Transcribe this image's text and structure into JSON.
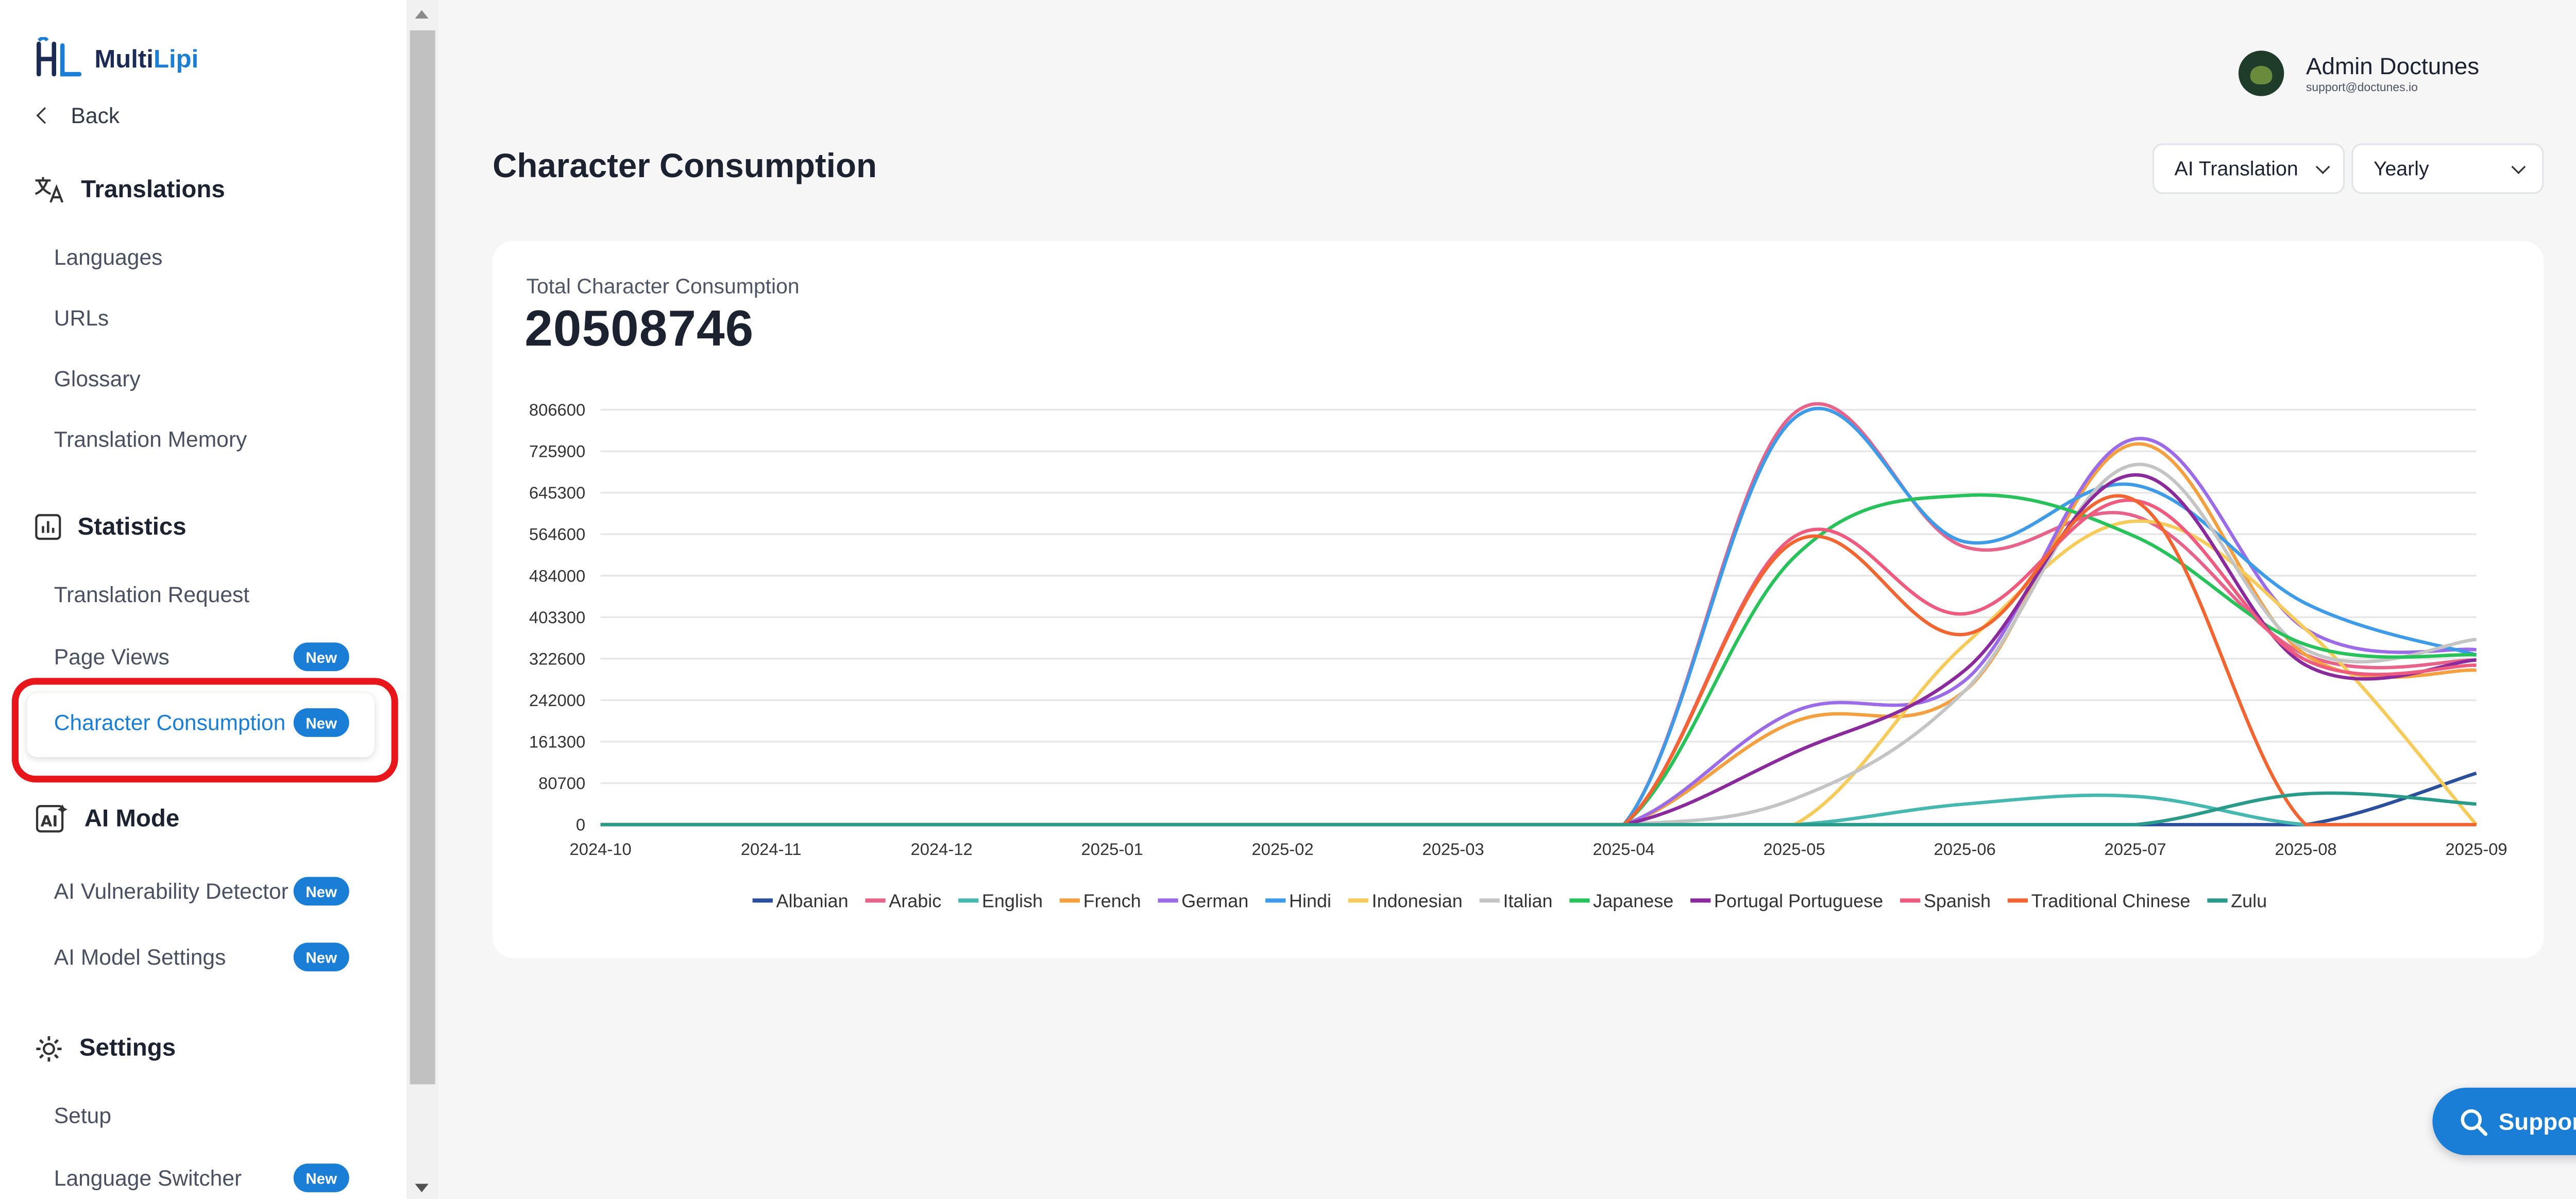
{
  "app": {
    "logo_text_a": "Multi",
    "logo_text_b": "Lipi",
    "back_label": "Back"
  },
  "sidebar": {
    "translations_title": "Translations",
    "translations_items": [
      "Languages",
      "URLs",
      "Glossary",
      "Translation Memory"
    ],
    "statistics_title": "Statistics",
    "statistics_items": [
      "Translation Request",
      "Page Views",
      "Character Consumption"
    ],
    "ai_title": "AI Mode",
    "ai_items": [
      "AI Vulnerability Detector",
      "AI Model Settings"
    ],
    "settings_title": "Settings",
    "settings_items": [
      "Setup",
      "Language Switcher"
    ],
    "badge_label": "New"
  },
  "header": {
    "user_name": "Admin Doctunes",
    "user_email": "support@doctunes.io",
    "page_title": "Character Consumption",
    "filter_type": "AI Translation",
    "filter_period": "Yearly"
  },
  "summary": {
    "total_label": "Total Character Consumption",
    "total_value": "20508746"
  },
  "support": {
    "label": "Support"
  },
  "chart_data": {
    "type": "line",
    "x": [
      "2024-10",
      "2024-11",
      "2024-12",
      "2025-01",
      "2025-02",
      "2025-03",
      "2025-04",
      "2025-05",
      "2025-06",
      "2025-07",
      "2025-08",
      "2025-09"
    ],
    "y_ticks": [
      "0",
      "80700",
      "161300",
      "242000",
      "322600",
      "403300",
      "484000",
      "564600",
      "645300",
      "725900",
      "806600"
    ],
    "ylim": [
      0,
      806600
    ],
    "grid": true,
    "legend_position": "bottom",
    "series": [
      {
        "name": "Albanian",
        "color": "#2a4f9c",
        "values": [
          0,
          0,
          0,
          0,
          0,
          0,
          0,
          0,
          0,
          0,
          0,
          100000
        ]
      },
      {
        "name": "Arabic",
        "color": "#e8638a",
        "values": [
          0,
          0,
          0,
          0,
          0,
          0,
          0,
          800000,
          540000,
          600000,
          330000,
          320000
        ]
      },
      {
        "name": "English",
        "color": "#46b8b0",
        "values": [
          0,
          0,
          0,
          0,
          0,
          0,
          0,
          0,
          40000,
          55000,
          0,
          0
        ]
      },
      {
        "name": "French",
        "color": "#f5a040",
        "values": [
          0,
          0,
          0,
          0,
          0,
          0,
          0,
          200000,
          260000,
          740000,
          330000,
          300000
        ]
      },
      {
        "name": "German",
        "color": "#9b6be8",
        "values": [
          0,
          0,
          0,
          0,
          0,
          0,
          0,
          220000,
          280000,
          750000,
          380000,
          340000
        ]
      },
      {
        "name": "Hindi",
        "color": "#3d9be8",
        "values": [
          0,
          0,
          0,
          0,
          0,
          0,
          0,
          790000,
          550000,
          660000,
          430000,
          330000
        ]
      },
      {
        "name": "Indonesian",
        "color": "#f7cb5a",
        "values": [
          0,
          0,
          0,
          0,
          0,
          0,
          0,
          0,
          350000,
          590000,
          380000,
          0
        ]
      },
      {
        "name": "Italian",
        "color": "#c4c4c4",
        "values": [
          0,
          0,
          0,
          0,
          0,
          0,
          0,
          50000,
          260000,
          700000,
          340000,
          360000
        ]
      },
      {
        "name": "Japanese",
        "color": "#27c35a",
        "values": [
          0,
          0,
          0,
          0,
          0,
          0,
          0,
          520000,
          640000,
          560000,
          350000,
          330000
        ]
      },
      {
        "name": "Portugal Portuguese",
        "color": "#8a2a9c",
        "values": [
          0,
          0,
          0,
          0,
          0,
          0,
          0,
          140000,
          300000,
          680000,
          310000,
          320000
        ]
      },
      {
        "name": "Spanish",
        "color": "#ef5b7e",
        "values": [
          0,
          0,
          0,
          0,
          0,
          0,
          0,
          560000,
          410000,
          630000,
          320000,
          310000
        ]
      },
      {
        "name": "Traditional Chinese",
        "color": "#f26430",
        "values": [
          0,
          0,
          0,
          0,
          0,
          0,
          0,
          550000,
          370000,
          630000,
          0,
          0
        ]
      },
      {
        "name": "Zulu",
        "color": "#2a9a8a",
        "values": [
          0,
          0,
          0,
          0,
          0,
          0,
          0,
          0,
          0,
          0,
          60000,
          40000
        ]
      }
    ]
  },
  "colors": {
    "accent": "#1a7ed6",
    "highlight": "#e8151b"
  }
}
